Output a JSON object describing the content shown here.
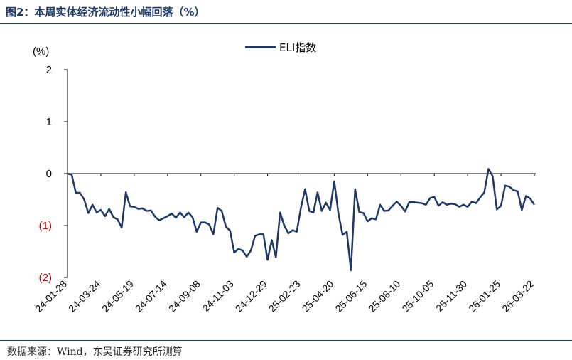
{
  "figure_title": "图2：本周实体经济流动性小幅回落（%）",
  "source_note": "数据来源：Wind，东吴证券研究所测算",
  "colors": {
    "line": "#1f3864",
    "negative_label": "#c00000",
    "frame": "#1f3864"
  },
  "chart_data": {
    "type": "line",
    "ylabel": "(%)",
    "ylim": [
      -2,
      2
    ],
    "y_ticks": [
      {
        "value": 2,
        "label": "2"
      },
      {
        "value": 1,
        "label": "1"
      },
      {
        "value": 0,
        "label": "0"
      },
      {
        "value": -1,
        "label": "(1)"
      },
      {
        "value": -2,
        "label": "(2)"
      }
    ],
    "x_tick_labels": [
      "24-01-28",
      "24-03-24",
      "24-05-19",
      "24-07-14",
      "24-09-08",
      "24-11-03",
      "24-12-29",
      "25-02-23",
      "25-04-20",
      "25-06-15",
      "25-08-10",
      "25-10-05",
      "25-11-30",
      "26-01-25",
      "26-03-22"
    ],
    "legend": {
      "position": "top-center"
    },
    "grid": false,
    "series": [
      {
        "name": "ELI指数",
        "x": [
          "24-01-28",
          "24-02-04",
          "24-02-11",
          "24-02-18",
          "24-02-25",
          "24-03-03",
          "24-03-10",
          "24-03-17",
          "24-03-24",
          "24-03-31",
          "24-04-07",
          "24-04-14",
          "24-04-21",
          "24-04-28",
          "24-05-05",
          "24-05-12",
          "24-05-19",
          "24-05-26",
          "24-06-02",
          "24-06-09",
          "24-06-16",
          "24-06-23",
          "24-06-30",
          "24-07-07",
          "24-07-14",
          "24-07-21",
          "24-07-28",
          "24-08-04",
          "24-08-11",
          "24-08-18",
          "24-08-25",
          "24-09-01",
          "24-09-08",
          "24-09-15",
          "24-09-22",
          "24-09-29",
          "24-10-06",
          "24-10-13",
          "24-10-20",
          "24-10-27",
          "24-11-03",
          "24-11-10",
          "24-11-17",
          "24-11-24",
          "24-12-01",
          "24-12-08",
          "24-12-15",
          "24-12-22",
          "24-12-29",
          "25-01-05",
          "25-01-12",
          "25-01-19",
          "25-01-26",
          "25-02-02",
          "25-02-09",
          "25-02-16",
          "25-02-23",
          "25-03-02",
          "25-03-09",
          "25-03-16",
          "25-03-23",
          "25-03-30",
          "25-04-06",
          "25-04-13",
          "25-04-20",
          "25-04-27",
          "25-05-04",
          "25-05-11",
          "25-05-18",
          "25-05-25",
          "25-06-01",
          "25-06-08",
          "25-06-15",
          "25-06-22",
          "25-06-29",
          "25-07-06",
          "25-07-13",
          "25-07-20",
          "25-07-27",
          "25-08-03",
          "25-08-10",
          "25-08-17",
          "25-08-24",
          "25-08-31",
          "25-09-07",
          "25-09-14",
          "25-09-21",
          "25-09-28",
          "25-10-05",
          "25-10-12",
          "25-10-19",
          "25-10-26",
          "25-11-02",
          "25-11-09",
          "25-11-16",
          "25-11-23",
          "25-11-30",
          "25-12-07",
          "25-12-14",
          "25-12-21",
          "25-12-28",
          "26-01-04",
          "26-01-11",
          "26-01-18",
          "26-01-25",
          "26-02-01",
          "26-02-08",
          "26-02-15",
          "26-02-22",
          "26-03-01",
          "26-03-08",
          "26-03-15",
          "26-03-22"
        ],
        "values": [
          0.0,
          -0.02,
          -0.37,
          -0.37,
          -0.5,
          -0.76,
          -0.6,
          -0.75,
          -0.7,
          -0.82,
          -0.68,
          -0.84,
          -0.88,
          -1.04,
          -0.36,
          -0.63,
          -0.64,
          -0.68,
          -0.67,
          -0.72,
          -0.71,
          -0.83,
          -0.9,
          -0.86,
          -0.82,
          -0.77,
          -0.85,
          -0.75,
          -0.84,
          -0.75,
          -0.84,
          -1.12,
          -0.94,
          -0.94,
          -0.98,
          -1.17,
          -0.66,
          -0.72,
          -1.02,
          -1.1,
          -1.52,
          -1.45,
          -1.48,
          -1.6,
          -1.48,
          -1.2,
          -1.17,
          -1.17,
          -1.66,
          -1.28,
          -1.61,
          -0.75,
          -1.0,
          -1.15,
          -1.09,
          -1.12,
          -0.66,
          -0.3,
          -0.72,
          -0.75,
          -0.36,
          -0.72,
          -0.56,
          -0.7,
          -0.15,
          -0.77,
          -1.18,
          -1.12,
          -1.86,
          -0.3,
          -0.74,
          -0.76,
          -0.92,
          -0.86,
          -0.88,
          -0.6,
          -0.72,
          -0.71,
          -0.62,
          -0.54,
          -0.62,
          -0.73,
          -0.55,
          -0.55,
          -0.56,
          -0.57,
          -0.6,
          -0.47,
          -0.45,
          -0.62,
          -0.55,
          -0.6,
          -0.58,
          -0.59,
          -0.64,
          -0.6,
          -0.64,
          -0.54,
          -0.57,
          -0.46,
          -0.36,
          0.09,
          -0.05,
          -0.69,
          -0.62,
          -0.23,
          -0.25,
          -0.32,
          -0.34,
          -0.7,
          -0.43,
          -0.48,
          -0.6
        ]
      }
    ]
  }
}
